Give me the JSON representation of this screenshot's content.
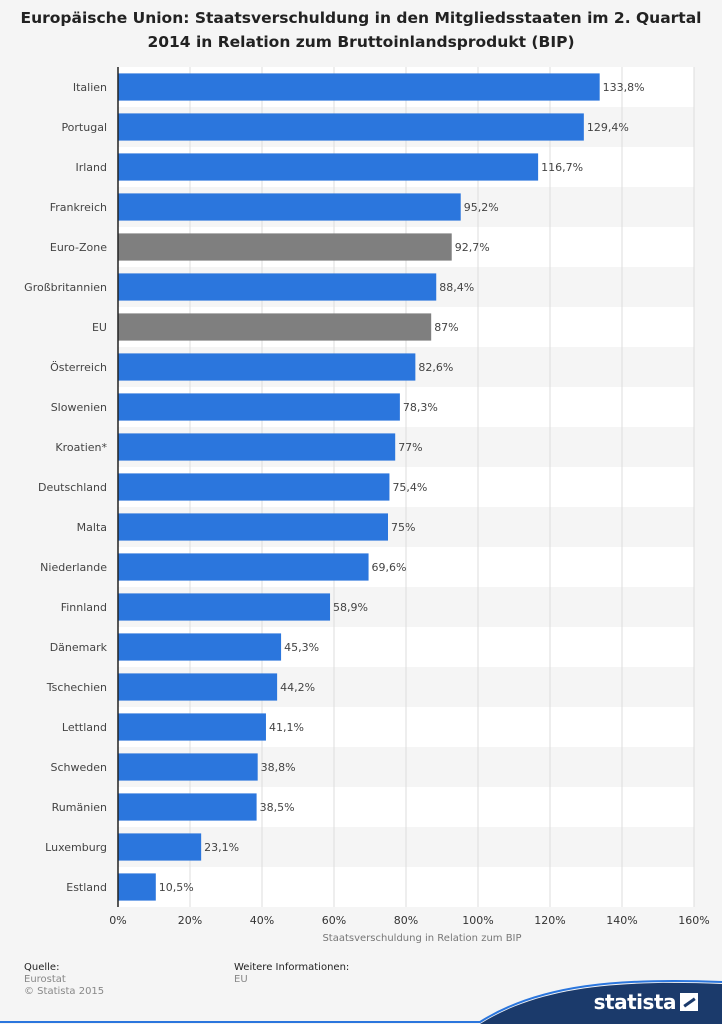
{
  "chart_data": {
    "type": "bar",
    "orientation": "horizontal",
    "title": "Europäische Union: Staatsverschuldung in den Mitgliedsstaaten im 2. Quartal 2014 in Relation zum Bruttoinlandsprodukt (BIP)",
    "xlabel": "Staatsverschuldung in Relation zum BIP",
    "ylabel": "",
    "xlim": [
      0,
      160
    ],
    "x_ticks": [
      "0%",
      "20%",
      "40%",
      "60%",
      "80%",
      "100%",
      "120%",
      "140%",
      "160%"
    ],
    "grid": true,
    "categories": [
      "Italien",
      "Portugal",
      "Irland",
      "Frankreich",
      "Euro-Zone",
      "Großbritannien",
      "EU",
      "Österreich",
      "Slowenien",
      "Kroatien*",
      "Deutschland",
      "Malta",
      "Niederlande",
      "Finnland",
      "Dänemark",
      "Tschechien",
      "Lettland",
      "Schweden",
      "Rumänien",
      "Luxemburg",
      "Estland"
    ],
    "values": [
      133.8,
      129.4,
      116.7,
      95.2,
      92.7,
      88.4,
      87,
      82.6,
      78.3,
      77,
      75.4,
      75,
      69.6,
      58.9,
      45.3,
      44.2,
      41.1,
      38.8,
      38.5,
      23.1,
      10.5
    ],
    "value_labels": [
      "133,8%",
      "129,4%",
      "116,7%",
      "95,2%",
      "92,7%",
      "88,4%",
      "87%",
      "82,6%",
      "78,3%",
      "77%",
      "75,4%",
      "75%",
      "69,6%",
      "58,9%",
      "45,3%",
      "44,2%",
      "41,1%",
      "38,8%",
      "38,5%",
      "23,1%",
      "10,5%"
    ],
    "highlight": [
      "Euro-Zone",
      "EU"
    ],
    "colors": {
      "bar": "#2b76dd",
      "highlight": "#7f7f7f",
      "grid": "#dddddd",
      "axis": "#222222"
    }
  },
  "footer": {
    "source_label": "Quelle:",
    "source": "Eurostat",
    "copyright": "© Statista 2015",
    "info_label": "Weitere Informationen:",
    "info": "EU"
  },
  "brand": {
    "name": "statista",
    "color": "#1b3a6b"
  }
}
